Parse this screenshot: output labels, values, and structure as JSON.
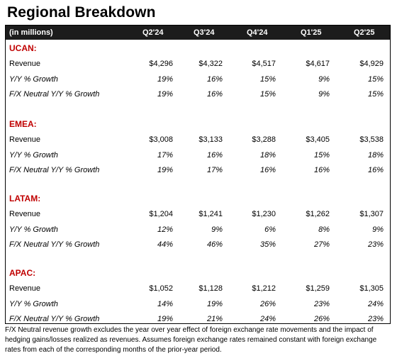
{
  "title": "Regional Breakdown",
  "header": {
    "unit_label": "(in millions)",
    "quarters": [
      "Q2'24",
      "Q3'24",
      "Q4'24",
      "Q1'25",
      "Q2'25"
    ]
  },
  "regions": [
    {
      "name": "UCAN:",
      "rows": [
        {
          "label": "Revenue",
          "italic": false,
          "values": [
            "$4,296",
            "$4,322",
            "$4,517",
            "$4,617",
            "$4,929"
          ]
        },
        {
          "label": "Y/Y % Growth",
          "italic": true,
          "values": [
            "19%",
            "16%",
            "15%",
            "9%",
            "15%"
          ]
        },
        {
          "label": "F/X Neutral Y/Y % Growth",
          "italic": true,
          "values": [
            "19%",
            "16%",
            "15%",
            "9%",
            "15%"
          ]
        }
      ]
    },
    {
      "name": "EMEA:",
      "rows": [
        {
          "label": "Revenue",
          "italic": false,
          "values": [
            "$3,008",
            "$3,133",
            "$3,288",
            "$3,405",
            "$3,538"
          ]
        },
        {
          "label": "Y/Y % Growth",
          "italic": true,
          "values": [
            "17%",
            "16%",
            "18%",
            "15%",
            "18%"
          ]
        },
        {
          "label": "F/X Neutral Y/Y % Growth",
          "italic": true,
          "values": [
            "19%",
            "17%",
            "16%",
            "16%",
            "16%"
          ]
        }
      ]
    },
    {
      "name": "LATAM:",
      "rows": [
        {
          "label": "Revenue",
          "italic": false,
          "values": [
            "$1,204",
            "$1,241",
            "$1,230",
            "$1,262",
            "$1,307"
          ]
        },
        {
          "label": "Y/Y % Growth",
          "italic": true,
          "values": [
            "12%",
            "9%",
            "6%",
            "8%",
            "9%"
          ]
        },
        {
          "label": "F/X Neutral Y/Y % Growth",
          "italic": true,
          "values": [
            "44%",
            "46%",
            "35%",
            "27%",
            "23%"
          ]
        }
      ]
    },
    {
      "name": "APAC:",
      "rows": [
        {
          "label": "Revenue",
          "italic": false,
          "values": [
            "$1,052",
            "$1,128",
            "$1,212",
            "$1,259",
            "$1,305"
          ]
        },
        {
          "label": "Y/Y % Growth",
          "italic": true,
          "values": [
            "14%",
            "19%",
            "26%",
            "23%",
            "24%"
          ]
        },
        {
          "label": "F/X Neutral Y/Y % Growth",
          "italic": true,
          "values": [
            "19%",
            "21%",
            "24%",
            "26%",
            "23%"
          ]
        }
      ]
    }
  ],
  "footnote": "F/X Neutral revenue growth excludes the year over year effect of foreign exchange rate movements and the impact of hedging gains/losses realized as revenues. Assumes foreign exchange rates remained constant with foreign exchange rates from each of the corresponding months of the prior-year period."
}
